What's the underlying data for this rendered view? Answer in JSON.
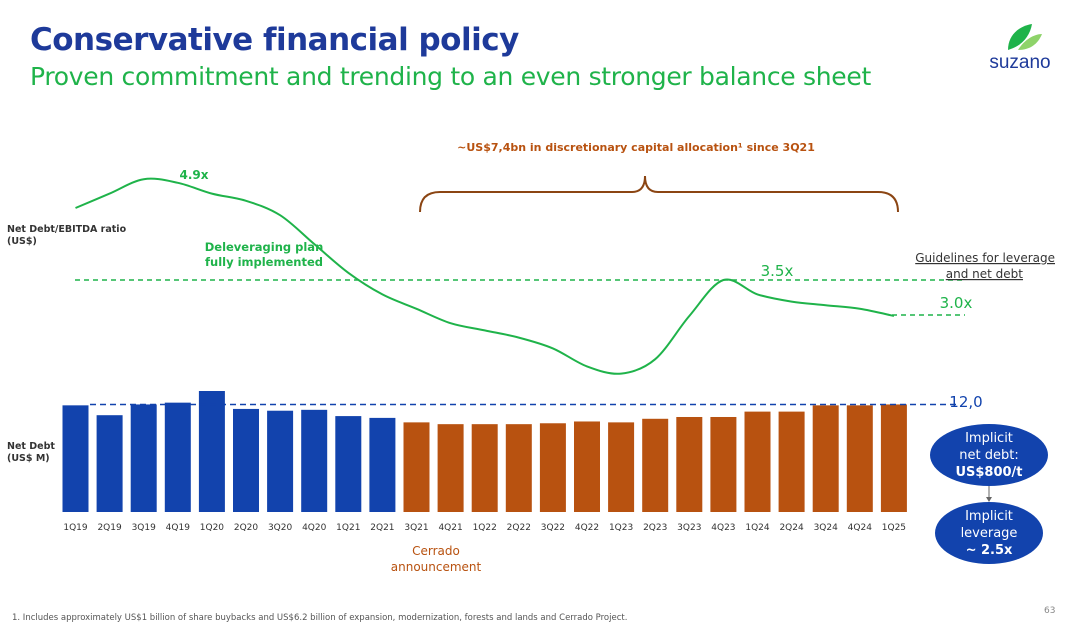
{
  "header": {
    "title": "Conservative financial policy",
    "subtitle": "Proven commitment and trending to an even stronger balance sheet"
  },
  "logo": {
    "text": "suzano",
    "icon": "leaf-icon"
  },
  "colors": {
    "blue": "#1243ad",
    "orange": "#b85210",
    "green": "#1fb34a",
    "brown": "#8b4513"
  },
  "annotations": {
    "capital_allocation": "~US$7,4bn in discretionary capital allocation¹ since 3Q21",
    "deleveraging_line1": "Deleveraging plan",
    "deleveraging_line2": "fully implemented",
    "guidelines_line1": "Guidelines for leverage",
    "guidelines_line2": "and net debt",
    "cerrado_line1": "Cerrado",
    "cerrado_line2": "announcement",
    "net_debt_ebitda_line1": "Net Debt/EBITDA ratio",
    "net_debt_ebitda_line2": "(US$)",
    "net_debt_line1": "Net Debt",
    "net_debt_line2": "(US$ M)",
    "peak_label": "4.9x",
    "leverage_guideline_label": "3.5x",
    "leverage_target_label": "3.0x",
    "debt_guideline_label": "12,0"
  },
  "bubbles": {
    "net_debt": {
      "line1": "Implicit",
      "line2": "net debt:",
      "line3": "US$800/t"
    },
    "leverage": {
      "line1": "Implicit",
      "line2": "leverage",
      "line3": "~ 2.5x"
    }
  },
  "chart_data": {
    "type": "bar+line",
    "categories": [
      "1Q19",
      "2Q19",
      "3Q19",
      "4Q19",
      "1Q20",
      "2Q20",
      "3Q20",
      "4Q20",
      "1Q21",
      "2Q21",
      "3Q21",
      "4Q21",
      "1Q22",
      "2Q22",
      "3Q22",
      "4Q22",
      "1Q23",
      "2Q23",
      "3Q23",
      "4Q23",
      "1Q24",
      "2Q24",
      "3Q24",
      "4Q24",
      "1Q25"
    ],
    "series": [
      {
        "name": "Net Debt (US$ M)",
        "type": "bar",
        "values": [
          11.9,
          10.8,
          12.0,
          12.2,
          13.5,
          11.5,
          11.3,
          11.4,
          10.7,
          10.5,
          10.0,
          9.8,
          9.8,
          9.8,
          9.9,
          10.1,
          10.0,
          10.4,
          10.6,
          10.6,
          11.2,
          11.2,
          11.9,
          11.9,
          12.0
        ]
      },
      {
        "name": "Net Debt/EBITDA ratio",
        "type": "line",
        "values": [
          4.5,
          4.7,
          4.9,
          4.85,
          4.7,
          4.6,
          4.4,
          4.0,
          3.6,
          3.3,
          3.1,
          2.9,
          2.8,
          2.7,
          2.55,
          2.3,
          2.2,
          2.4,
          3.0,
          3.5,
          3.3,
          3.2,
          3.15,
          3.1,
          3.0
        ]
      }
    ],
    "bar_color_split_index": 10,
    "guidelines": {
      "net_debt": 12.0,
      "leverage": 3.5
    }
  },
  "footnote": "1. Includes approximately US$1 billion of share buybacks and US$6.2 billion of expansion, modernization, forests and lands and Cerrado Project.",
  "page_number": "63"
}
